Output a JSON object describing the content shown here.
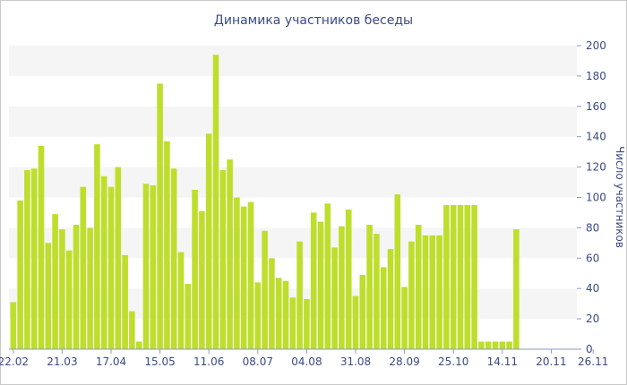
{
  "chart_data": {
    "type": "bar",
    "title": "Динамика участников беседы",
    "xlabel": "",
    "ylabel": "Число участников",
    "ylim": [
      0,
      200
    ],
    "yticks": [
      0,
      20,
      40,
      60,
      80,
      100,
      120,
      140,
      160,
      180,
      200
    ],
    "grid": "alternating horizontal bands",
    "bar_color": "#bede2d",
    "band_color": "#f5f5f5",
    "text_color": "#3b4a86",
    "x_tick_labels": [
      {
        "label": "22.02",
        "index": 0
      },
      {
        "label": "21.03",
        "index": 7
      },
      {
        "label": "17.04",
        "index": 14
      },
      {
        "label": "15.05",
        "index": 21
      },
      {
        "label": "11.06",
        "index": 28
      },
      {
        "label": "08.07",
        "index": 35
      },
      {
        "label": "04.08",
        "index": 42
      },
      {
        "label": "31.08",
        "index": 49
      },
      {
        "label": "28.09",
        "index": 56
      },
      {
        "label": "25.10",
        "index": 63
      },
      {
        "label": "14.11",
        "index": 70
      },
      {
        "label": "20.11",
        "index": 77
      },
      {
        "label": "26.11",
        "index": 83
      }
    ],
    "values": [
      31,
      98,
      118,
      119,
      134,
      70,
      89,
      79,
      65,
      82,
      107,
      80,
      135,
      114,
      107,
      120,
      62,
      25,
      5,
      109,
      108,
      175,
      137,
      119,
      64,
      43,
      105,
      91,
      142,
      194,
      118,
      125,
      100,
      94,
      97,
      44,
      78,
      60,
      47,
      45,
      34,
      71,
      33,
      90,
      84,
      96,
      67,
      81,
      92,
      35,
      49,
      82,
      76,
      54,
      66,
      102,
      41,
      71,
      82,
      75,
      75,
      75,
      95,
      95,
      95,
      95,
      95,
      5,
      5,
      5,
      5,
      5,
      79
    ]
  }
}
